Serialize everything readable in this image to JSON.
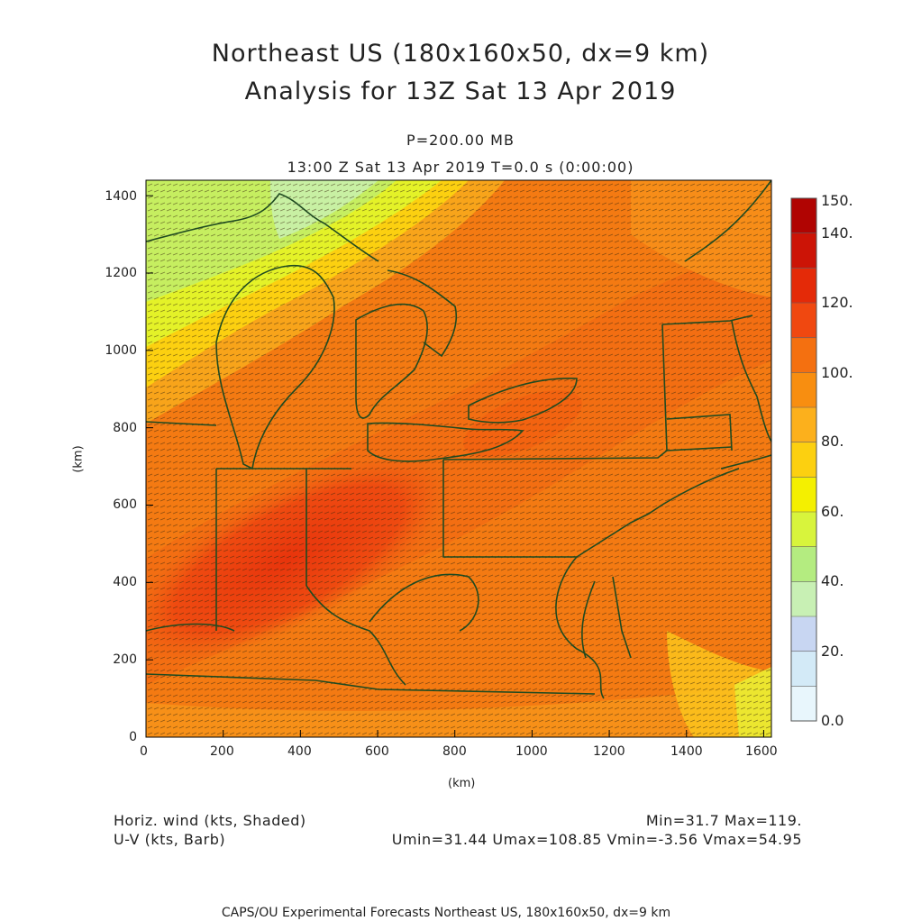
{
  "header": {
    "title_line1": "Northeast US (180x160x50, dx=9 km)",
    "title_line2": "Analysis for 13Z Sat 13 Apr 2019",
    "level": "P=200.00 MB",
    "valid_time": "13:00 Z Sat 13 Apr 2019    T=0.0 s (0:00:00)"
  },
  "axes": {
    "x_label": "(km)",
    "y_label": "(km)",
    "x_ticks": [
      "0",
      "200",
      "400",
      "600",
      "800",
      "1000",
      "1200",
      "1400",
      "1600"
    ],
    "y_ticks": [
      "0",
      "200",
      "400",
      "600",
      "800",
      "1000",
      "1200",
      "1400"
    ],
    "x_range_km": [
      0,
      1620
    ],
    "y_range_km": [
      0,
      1440
    ]
  },
  "colorbar": {
    "labels": [
      "150.",
      "140.",
      "120.",
      "100.",
      "80.",
      "60.",
      "40.",
      "20.",
      "0.0"
    ],
    "levels": [
      0,
      10,
      20,
      30,
      40,
      50,
      60,
      70,
      80,
      90,
      100,
      110,
      120,
      130,
      140,
      150
    ],
    "colors": [
      "#e8f6fc",
      "#d3eaf7",
      "#c8d6f2",
      "#c8f0b4",
      "#b4ec80",
      "#d8f43c",
      "#f4f000",
      "#fcd010",
      "#fcb01c",
      "#f88e10",
      "#f47010",
      "#f04810",
      "#e42a08",
      "#cc1406",
      "#b00402"
    ]
  },
  "legend": {
    "left_line1": "Horiz. wind (kts, Shaded)",
    "left_line2": "U-V (kts, Barb)",
    "right_line1": "Min=31.7 Max=119.",
    "right_line2": "Umin=31.44 Umax=108.85 Vmin=-3.56 Vmax=54.95"
  },
  "footer": "CAPS/OU Experimental Forecasts  Northeast US, 180x160x50, dx=9 km"
}
